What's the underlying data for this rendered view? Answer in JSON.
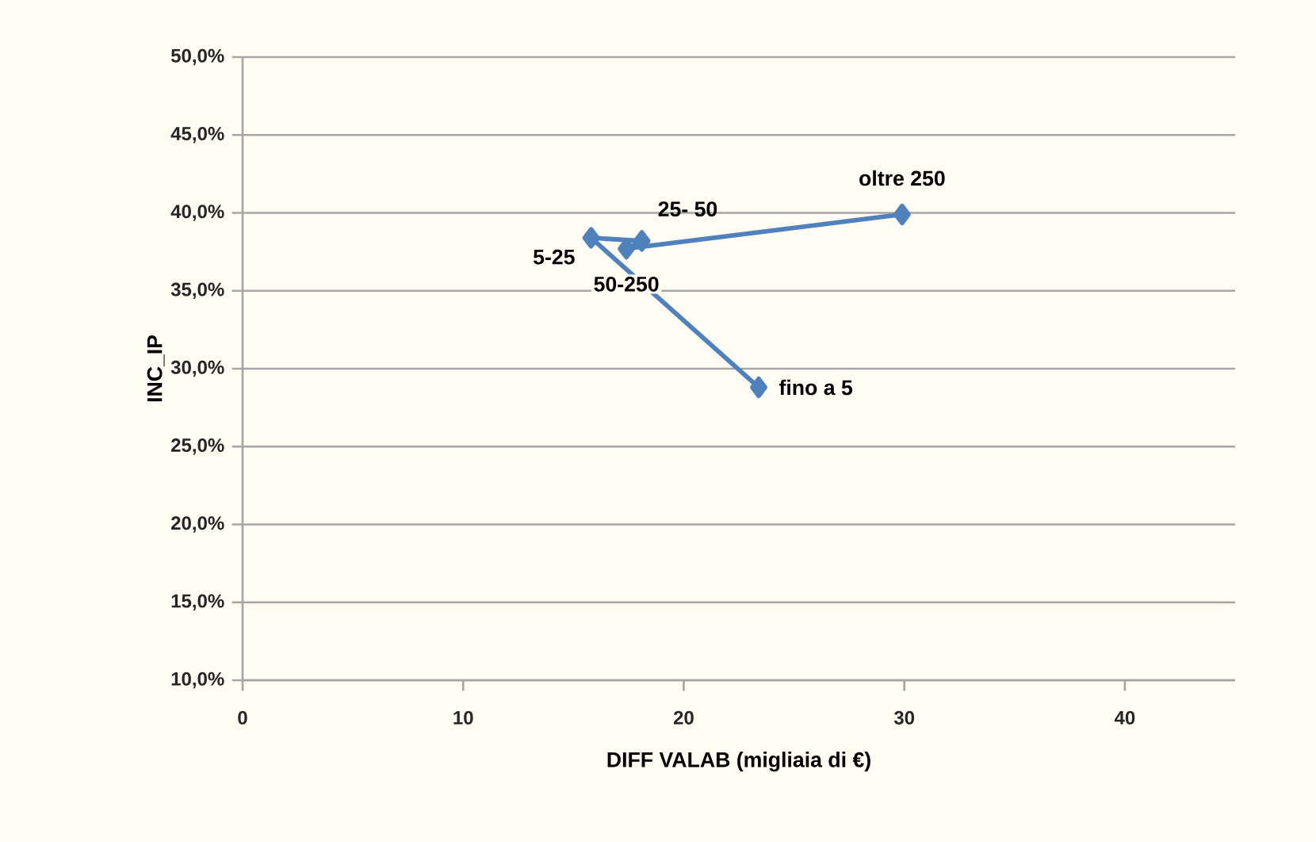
{
  "chart_data": {
    "type": "line",
    "xlabel": "DIFF VALAB (migliaia di €)",
    "ylabel": "INC_IP",
    "series": [
      {
        "color": "#4f81bd",
        "x": [
          23.4,
          15.8,
          18.1,
          17.4,
          29.9
        ],
        "values": [
          28.8,
          38.4,
          38.2,
          37.7,
          39.9
        ]
      }
    ],
    "annotations": [
      {
        "text": "fino a 5",
        "x": 23.4,
        "y": 28.8
      },
      {
        "text": "5-25",
        "x": 15.8,
        "y": 38.4
      },
      {
        "text": "25- 50",
        "x": 18.1,
        "y": 38.2
      },
      {
        "text": "50-250",
        "x": 17.4,
        "y": 37.7
      },
      {
        "text": "oltre 250",
        "x": 29.9,
        "y": 39.9
      }
    ],
    "xlim": [
      0,
      45
    ],
    "xticks": [
      0,
      10,
      20,
      30,
      40
    ],
    "ylim": [
      10,
      50
    ],
    "yticks": [
      {
        "value": 10,
        "label": "10,0%"
      },
      {
        "value": 15,
        "label": "15,0%"
      },
      {
        "value": 20,
        "label": "20,0%"
      },
      {
        "value": 25,
        "label": "25,0%"
      },
      {
        "value": 30,
        "label": "30,0%"
      },
      {
        "value": 35,
        "label": "35,0%"
      },
      {
        "value": 40,
        "label": "40,0%"
      },
      {
        "value": 45,
        "label": "45,0%"
      },
      {
        "value": 50,
        "label": "50,0%"
      }
    ],
    "grid": "y",
    "marker": "diamond",
    "line_style": "solid"
  }
}
